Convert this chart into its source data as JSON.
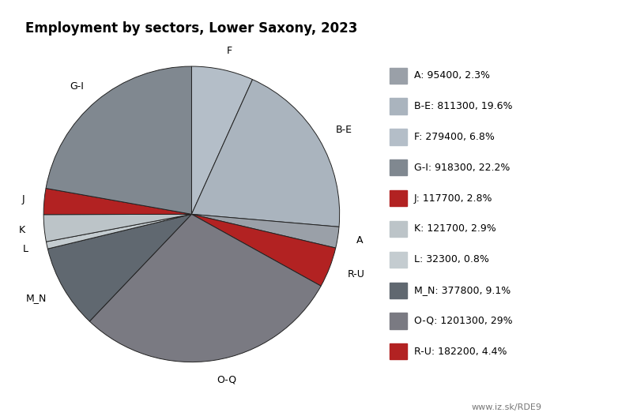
{
  "title": "Employment by sectors, Lower Saxony, 2023",
  "sectors_cw": [
    "F",
    "B-E",
    "A",
    "R-U",
    "O-Q",
    "M_N",
    "L",
    "K",
    "J",
    "G-I"
  ],
  "values_cw": [
    279400,
    811300,
    95400,
    182200,
    1201300,
    377800,
    32300,
    121700,
    117700,
    918300
  ],
  "colors_cw": [
    "#b4bec8",
    "#aab4be",
    "#9aa0a8",
    "#b22222",
    "#7a7a82",
    "#606870",
    "#c4ccd0",
    "#bcc4c8",
    "#b22222",
    "#808890"
  ],
  "legend_labels": [
    "A: 95400, 2.3%",
    "B-E: 811300, 19.6%",
    "F: 279400, 6.8%",
    "G-I: 918300, 22.2%",
    "J: 117700, 2.8%",
    "K: 121700, 2.9%",
    "L: 32300, 0.8%",
    "M_N: 377800, 9.1%",
    "O-Q: 1201300, 29%",
    "R-U: 182200, 4.4%"
  ],
  "legend_colors": [
    "#9aa0a8",
    "#aab4be",
    "#b4bec8",
    "#808890",
    "#b22222",
    "#bcc4c8",
    "#c4ccd0",
    "#606870",
    "#7a7a82",
    "#b22222"
  ],
  "watermark": "www.iz.sk/RDE9"
}
